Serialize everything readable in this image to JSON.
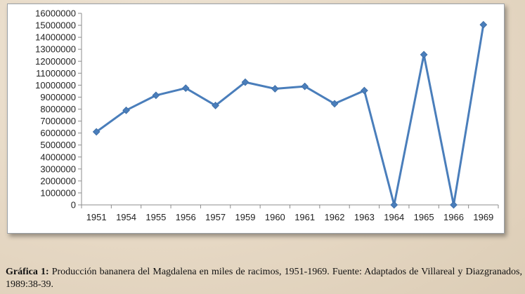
{
  "caption": {
    "label": "Gráfica 1:",
    "text": "Producción bananera del Magdalena en miles de racimos, 1951-1969. Fuente: Adaptados de Villareal y Diazgranados, 1989:38-39."
  },
  "chart_data": {
    "type": "line",
    "categories": [
      "1951",
      "1954",
      "1955",
      "1956",
      "1957",
      "1959",
      "1960",
      "1961",
      "1962",
      "1963",
      "1964",
      "1965",
      "1966",
      "1969"
    ],
    "series": [
      {
        "values": [
          6100000,
          7900000,
          9150000,
          9750000,
          8300000,
          10250000,
          9700000,
          9900000,
          8450000,
          9550000,
          0,
          12550000,
          0,
          15050000
        ]
      }
    ],
    "y_ticks": [
      "0",
      "1000000",
      "2000000",
      "3000000",
      "4000000",
      "5000000",
      "6000000",
      "7000000",
      "8000000",
      "9000000",
      "10000000",
      "11000000",
      "12000000",
      "13000000",
      "14000000",
      "15000000",
      "16000000"
    ],
    "ylim": [
      0,
      16000000
    ],
    "line_color": "#4a7ebb",
    "axis_color": "#8c8c8c",
    "grid": false,
    "marker": "diamond"
  }
}
